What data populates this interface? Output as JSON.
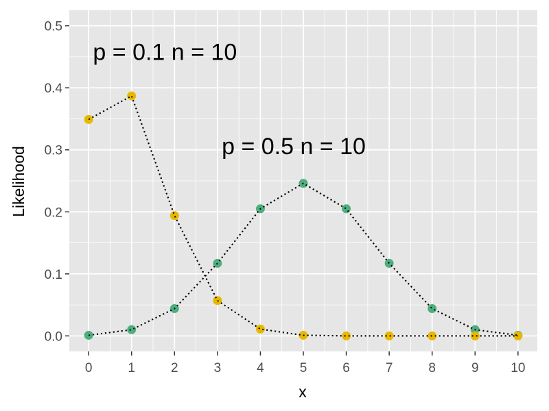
{
  "chart_data": {
    "type": "scatter",
    "title": "",
    "xlabel": "x",
    "ylabel": "Likelihood",
    "x": [
      0,
      1,
      2,
      3,
      4,
      5,
      6,
      7,
      8,
      9,
      10
    ],
    "xticks": [
      "0",
      "1",
      "2",
      "3",
      "4",
      "5",
      "6",
      "7",
      "8",
      "9",
      "10"
    ],
    "yticks": [
      "0.0",
      "0.1",
      "0.2",
      "0.3",
      "0.4",
      "0.5"
    ],
    "xlim": [
      -0.45,
      10.45
    ],
    "ylim": [
      -0.025,
      0.525
    ],
    "grid": true,
    "legend": "none",
    "series": [
      {
        "values": [
          0.349,
          0.387,
          0.194,
          0.057,
          0.011,
          0.001,
          0.0,
          0.0,
          0.0,
          0.0,
          0.0
        ],
        "color": "#E7B800"
      },
      {
        "values": [
          0.001,
          0.01,
          0.044,
          0.117,
          0.205,
          0.246,
          0.205,
          0.117,
          0.044,
          0.01,
          0.001
        ],
        "color": "#4EAE80"
      }
    ],
    "annotations": [
      {
        "text": "p = 0.1 n = 10",
        "x": 0.1,
        "y": 0.445
      },
      {
        "text": "p = 0.5 n = 10",
        "x": 3.1,
        "y": 0.293
      }
    ],
    "panel_color": "#E6E6E6",
    "grid_color": "#FFFFFF",
    "line_style": "dotted",
    "line_color": "#000000"
  }
}
